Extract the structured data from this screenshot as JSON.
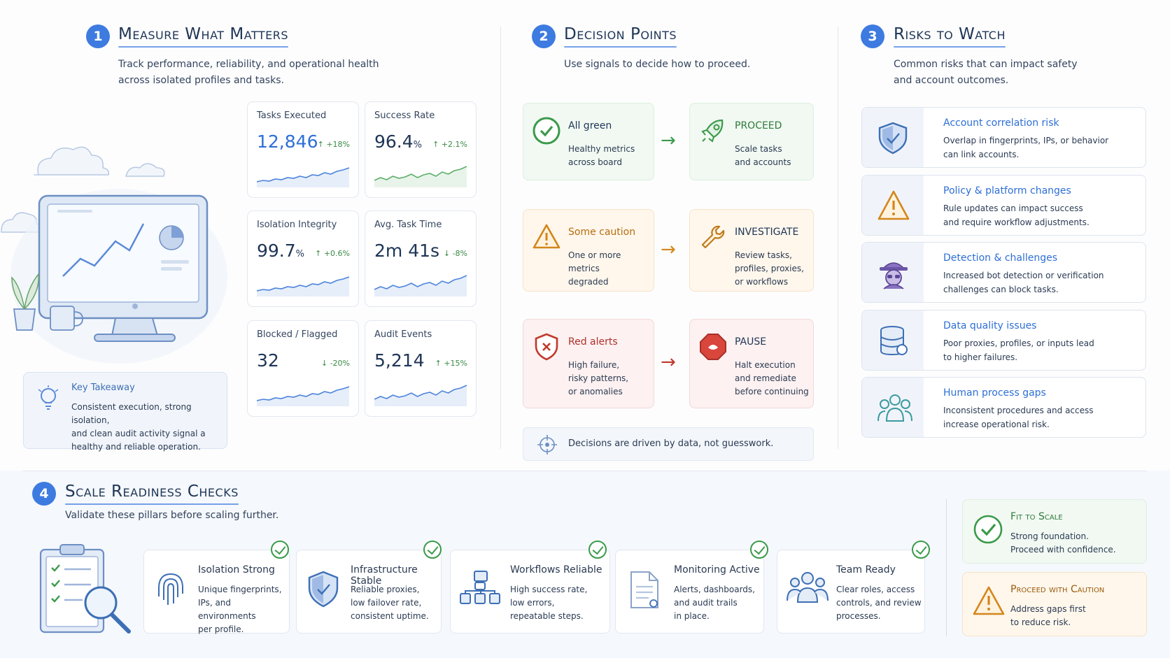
{
  "colors": {
    "accent": "#3d7be0",
    "green": "#3a8a44",
    "orange": "#c77a12",
    "red": "#c0392b",
    "navy": "#1e3556"
  },
  "section1": {
    "number": "1",
    "title": "Measure What Matters",
    "subtitle_line1": "Track performance, reliability, and operational health",
    "subtitle_line2": "across isolated profiles and tasks.",
    "metrics": [
      {
        "label": "Tasks Executed",
        "value": "12,846",
        "change": "↑ +18%",
        "trend": "up",
        "spark_color": "#4d84db"
      },
      {
        "label": "Success Rate",
        "value": "96.4",
        "unit": "%",
        "change": "↑ +2.1%",
        "trend": "up",
        "spark_color": "#5cae6a"
      },
      {
        "label": "Isolation Integrity",
        "value": "99.7",
        "unit": "%",
        "change": "↑ +0.6%",
        "trend": "up",
        "spark_color": "#4d84db"
      },
      {
        "label": "Avg. Task Time",
        "value": "2m 41s",
        "change": "↓ -8%",
        "trend": "down",
        "spark_color": "#4d84db"
      },
      {
        "label": "Blocked / Flagged",
        "value": "32",
        "change": "↓ -20%",
        "trend": "down",
        "spark_color": "#4d84db"
      },
      {
        "label": "Audit Events",
        "value": "5,214",
        "change": "↑ +15%",
        "trend": "up",
        "spark_color": "#4d84db"
      }
    ],
    "takeaway": {
      "title": "Key Takeaway",
      "line1": "Consistent execution, strong isolation,",
      "line2": "and clean audit activity signal a",
      "line3": "healthy and reliable operation."
    }
  },
  "section2": {
    "number": "2",
    "title": "Decision Points",
    "subtitle": "Use signals to decide how to proceed.",
    "rows": [
      {
        "signal_title": "All green",
        "signal_line1": "Healthy metrics",
        "signal_line2": "across board",
        "signal_line3": "",
        "action_title": "PROCEED",
        "action_line1": "Scale tasks",
        "action_line2": "and accounts",
        "action_line3": ""
      },
      {
        "signal_title": "Some caution",
        "signal_line1": "One or more metrics",
        "signal_line2": "degraded",
        "signal_line3": "",
        "action_title": "INVESTIGATE",
        "action_line1": "Review tasks,",
        "action_line2": "profiles, proxies,",
        "action_line3": "or workflows"
      },
      {
        "signal_title": "Red alerts",
        "signal_line1": "High failure,",
        "signal_line2": "risky patterns,",
        "signal_line3": "or anomalies",
        "action_title": "PAUSE",
        "action_line1": "Halt execution",
        "action_line2": "and remediate",
        "action_line3": "before continuing"
      }
    ],
    "note": "Decisions are driven by data, not guesswork."
  },
  "section3": {
    "number": "3",
    "title": "Risks to Watch",
    "subtitle_line1": "Common risks that can impact safety",
    "subtitle_line2": "and account outcomes.",
    "risks": [
      {
        "title": "Account correlation risk",
        "line1": "Overlap in fingerprints, IPs, or behavior",
        "line2": "can link accounts.",
        "icon": "shield-check-icon"
      },
      {
        "title": "Policy & platform changes",
        "line1": "Rule updates can impact success",
        "line2": "and require workflow adjustments.",
        "icon": "warning-icon"
      },
      {
        "title": "Detection & challenges",
        "line1": "Increased bot detection or verification",
        "line2": "challenges can block tasks.",
        "icon": "spy-icon"
      },
      {
        "title": "Data quality issues",
        "line1": "Poor proxies, profiles, or inputs lead",
        "line2": "to higher failures.",
        "icon": "database-icon"
      },
      {
        "title": "Human process gaps",
        "line1": "Inconsistent procedures and access",
        "line2": "increase operational risk.",
        "icon": "people-icon"
      }
    ]
  },
  "section4": {
    "number": "4",
    "title": "Scale Readiness Checks",
    "subtitle": "Validate these pillars before scaling further.",
    "pillars": [
      {
        "title": "Isolation Strong",
        "line1": "Unique fingerprints,",
        "line2": "IPs, and environments",
        "line3": "per profile.",
        "icon": "fingerprint-icon",
        "title_color": "#2d6fd6"
      },
      {
        "title": "Infrastructure Stable",
        "line1": "Reliable proxies,",
        "line2": "low failover rate,",
        "line3": "consistent uptime.",
        "icon": "shield-icon",
        "title_color": "#1e3556"
      },
      {
        "title": "Workflows Reliable",
        "line1": "High success rate,",
        "line2": "low errors,",
        "line3": "repeatable steps.",
        "icon": "flowchart-icon",
        "title_color": "#1e3556"
      },
      {
        "title": "Monitoring Active",
        "line1": "Alerts, dashboards,",
        "line2": "and audit trails",
        "line3": "in place.",
        "icon": "document-icon",
        "title_color": "#2d6fd6"
      },
      {
        "title": "Team Ready",
        "line1": "Clear roles, access",
        "line2": "controls, and review",
        "line3": "processes.",
        "icon": "team-icon",
        "title_color": "#2d6fd6"
      }
    ],
    "verdicts": [
      {
        "title": "Fit to Scale",
        "line1": "Strong foundation.",
        "line2": "Proceed with confidence."
      },
      {
        "title": "Proceed with Caution",
        "line1": "Address gaps first",
        "line2": "to reduce risk."
      }
    ]
  }
}
